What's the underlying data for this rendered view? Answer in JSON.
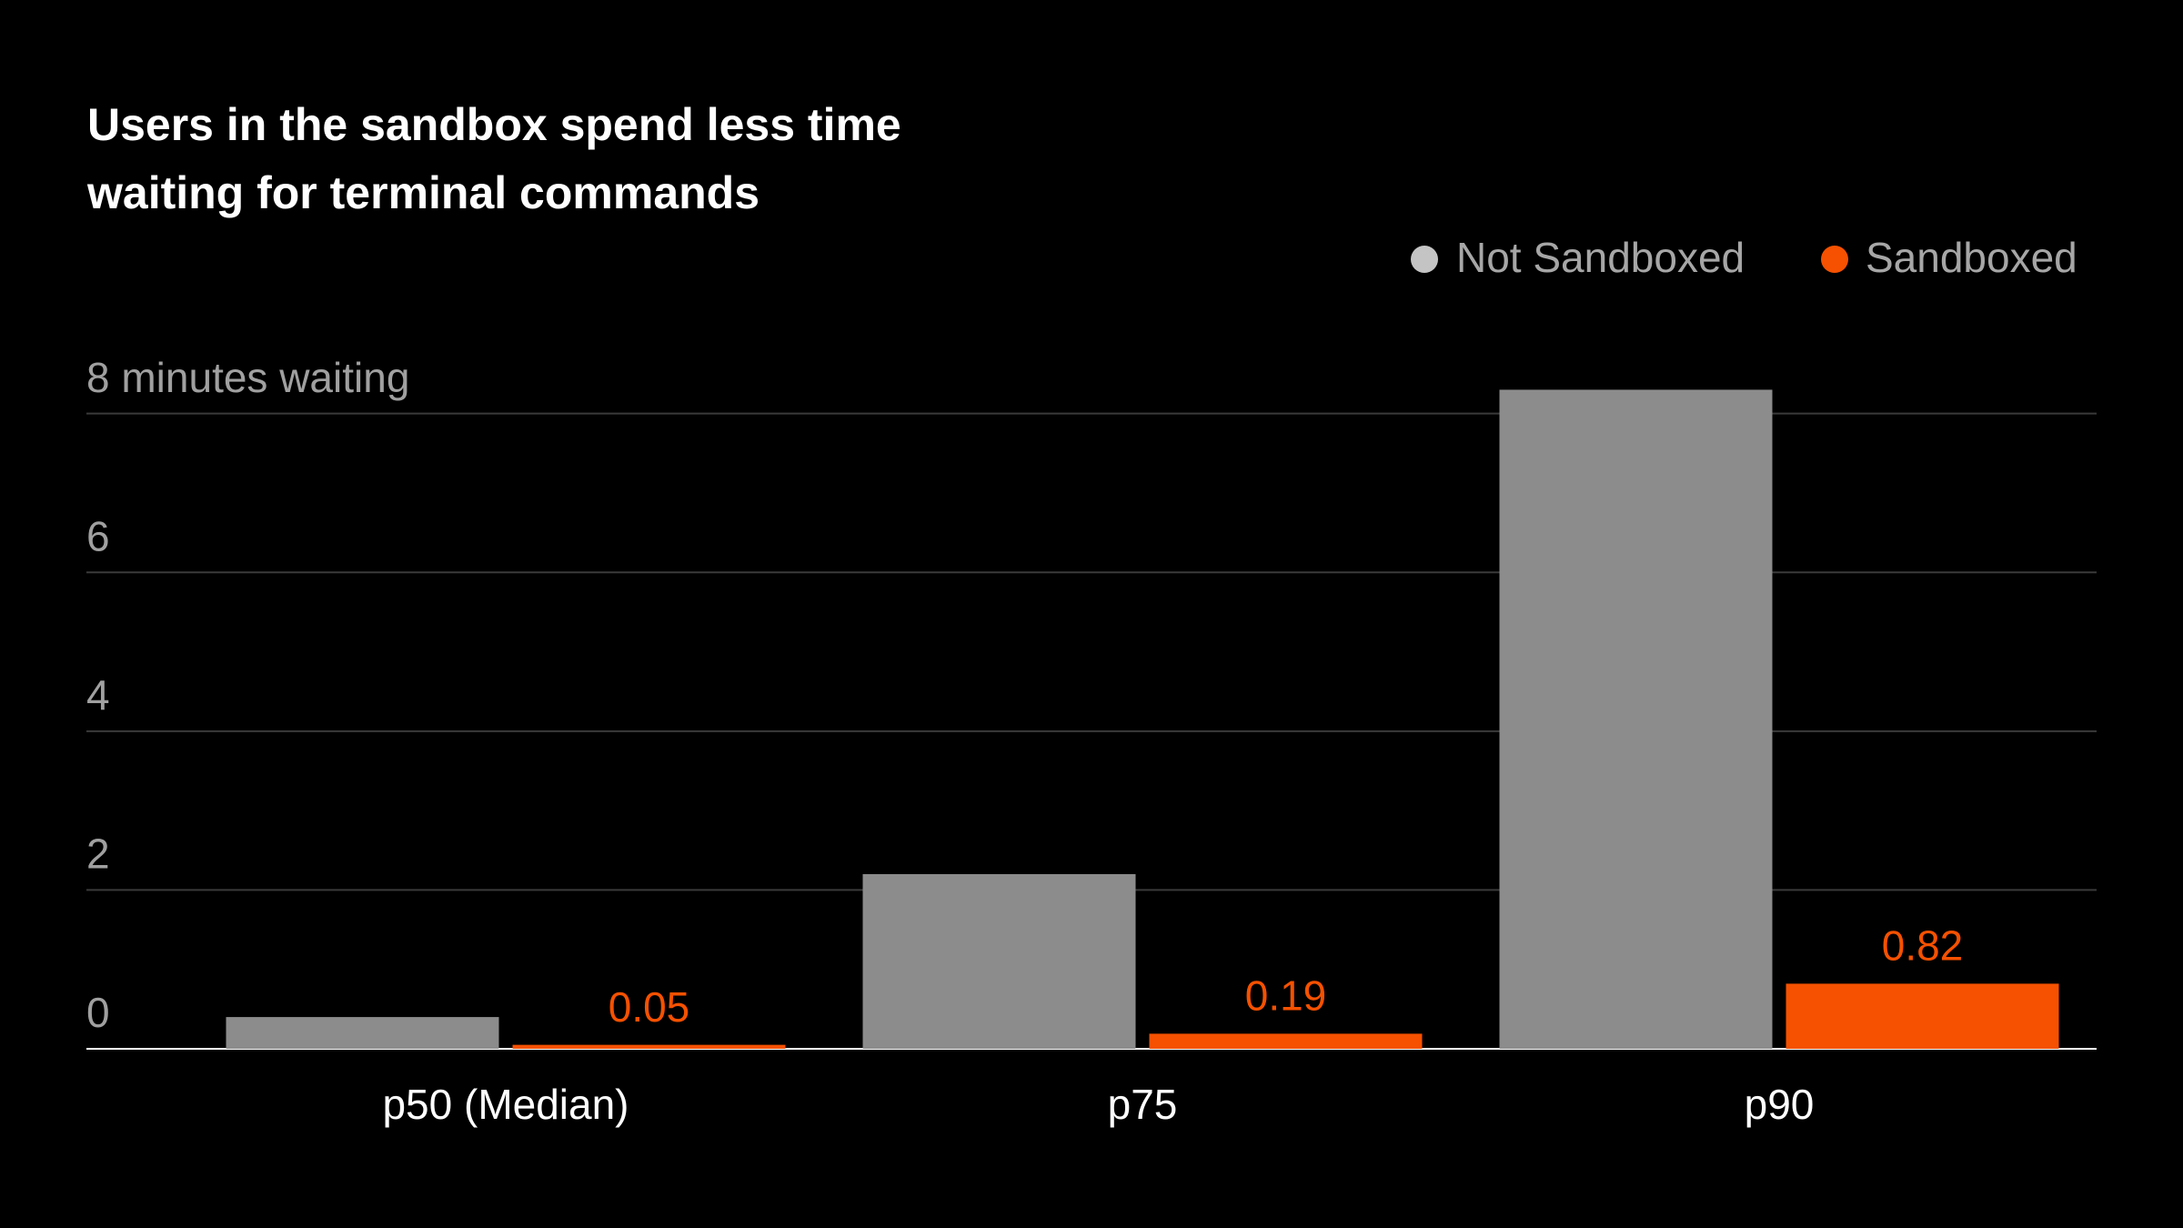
{
  "chart_data": {
    "type": "bar",
    "title": "Users in the sandbox spend less time waiting for terminal commands",
    "categories": [
      "p50 (Median)",
      "p75",
      "p90"
    ],
    "series": [
      {
        "name": "Not Sandboxed",
        "color": "#8c8c8c",
        "values": [
          0.4,
          2.2,
          8.3
        ]
      },
      {
        "name": "Sandboxed",
        "color": "#f55100",
        "values": [
          0.05,
          0.19,
          0.82
        ]
      }
    ],
    "ylim": [
      0,
      8.5
    ],
    "yticks": [
      0,
      2,
      4,
      6,
      {
        "value": 8,
        "label": "8 minutes waiting"
      }
    ],
    "grid": true,
    "legend": "top-right"
  }
}
